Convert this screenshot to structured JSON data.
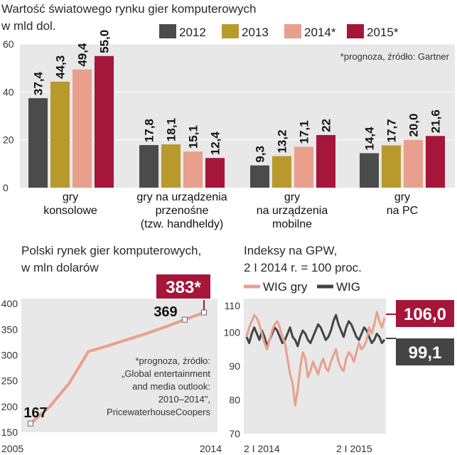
{
  "chart_data": [
    {
      "type": "bar",
      "title": "Wartość światowego rynku gier komputerowych",
      "subtitle": "w mld dol.",
      "note": "*prognoza, źródło: Gartner",
      "categories": [
        [
          "gry",
          "konsolowe"
        ],
        [
          "gry na urządzenia",
          "przenośne",
          "(tzw. handheldy)"
        ],
        [
          "gry",
          "na urządzenia",
          "mobilne"
        ],
        [
          "gry",
          "na PC"
        ]
      ],
      "series": [
        {
          "name": "2012",
          "color": "#4b4b4b",
          "values": [
            37.4,
            17.8,
            9.3,
            14.4
          ],
          "labels": [
            "37,4",
            "17,8",
            "9,3",
            "14,4"
          ]
        },
        {
          "name": "2013",
          "color": "#b89a2c",
          "values": [
            44.3,
            18.1,
            13.2,
            17.7
          ],
          "labels": [
            "44,3",
            "18,1",
            "13,2",
            "17,7"
          ]
        },
        {
          "name": "2014*",
          "color": "#e8a08c",
          "values": [
            49.4,
            15.1,
            17.1,
            20.0
          ],
          "labels": [
            "49,4",
            "15,1",
            "17,1",
            "20,0"
          ]
        },
        {
          "name": "2015*",
          "color": "#a6153a",
          "values": [
            55.0,
            12.4,
            22,
            21.6
          ],
          "labels": [
            "55,0",
            "12,4",
            "22",
            "21,6"
          ]
        }
      ],
      "ylim": [
        0,
        60
      ],
      "yticks": [
        0,
        20,
        40,
        60
      ],
      "legend": "top-right"
    },
    {
      "type": "line",
      "title": "Polski rynek gier komputerowych,",
      "subtitle": "w mln dolarów",
      "note": [
        "*prognoza, źródło:",
        "„Global entertainment",
        "and media outlook:",
        "2010–2014\",",
        "PricewaterhouseCoopers"
      ],
      "x": [
        2005,
        2006,
        2007,
        2008,
        2009,
        2010,
        2011,
        2012,
        2013,
        2014
      ],
      "values": [
        167,
        200,
        245,
        307,
        318,
        330,
        342,
        355,
        369,
        383
      ],
      "xticks": [
        "2005",
        "2014"
      ],
      "yticks": [
        150,
        200,
        250,
        300,
        350,
        400
      ],
      "ylim": [
        150,
        410
      ],
      "labels": {
        "first": "167",
        "mid": "369",
        "last": "383*"
      },
      "color": "#e8a08c"
    },
    {
      "type": "line",
      "title": "Indeksy na GPW,",
      "subtitle": "2 I 2014 r. = 100 proc.",
      "series": [
        {
          "name": "WIG gry",
          "color": "#e8a08c",
          "final_label": "106,0",
          "values": [
            100,
            103,
            105,
            107,
            106,
            104,
            101,
            98,
            96,
            99,
            102,
            104,
            105,
            103,
            100,
            98,
            93,
            88,
            85,
            78,
            83,
            90,
            95,
            93,
            87,
            89,
            92,
            90,
            88,
            91,
            93,
            90,
            89,
            92,
            94,
            96,
            92,
            90,
            89,
            93,
            95,
            94,
            92,
            95,
            98,
            96,
            97,
            99,
            103,
            101,
            104,
            108,
            105,
            103,
            106
          ]
        },
        {
          "name": "WIG",
          "color": "#444444",
          "final_label": "99,1",
          "values": [
            100,
            98,
            101,
            103,
            101,
            99,
            102,
            100,
            97,
            99,
            101,
            103,
            102,
            100,
            98,
            99,
            101,
            103,
            100,
            99,
            97,
            100,
            102,
            101,
            99,
            98,
            100,
            102,
            104,
            103,
            101,
            99,
            100,
            102,
            105,
            107,
            104,
            102,
            100,
            103,
            105,
            104,
            102,
            100,
            99,
            101,
            103,
            102,
            100,
            98,
            99,
            101,
            100,
            98,
            99.1
          ]
        }
      ],
      "xticks": [
        "2 I 2014",
        "2 I 2015"
      ],
      "yticks": [
        70,
        80,
        90,
        100,
        110
      ],
      "ylim": [
        70,
        110
      ]
    }
  ]
}
